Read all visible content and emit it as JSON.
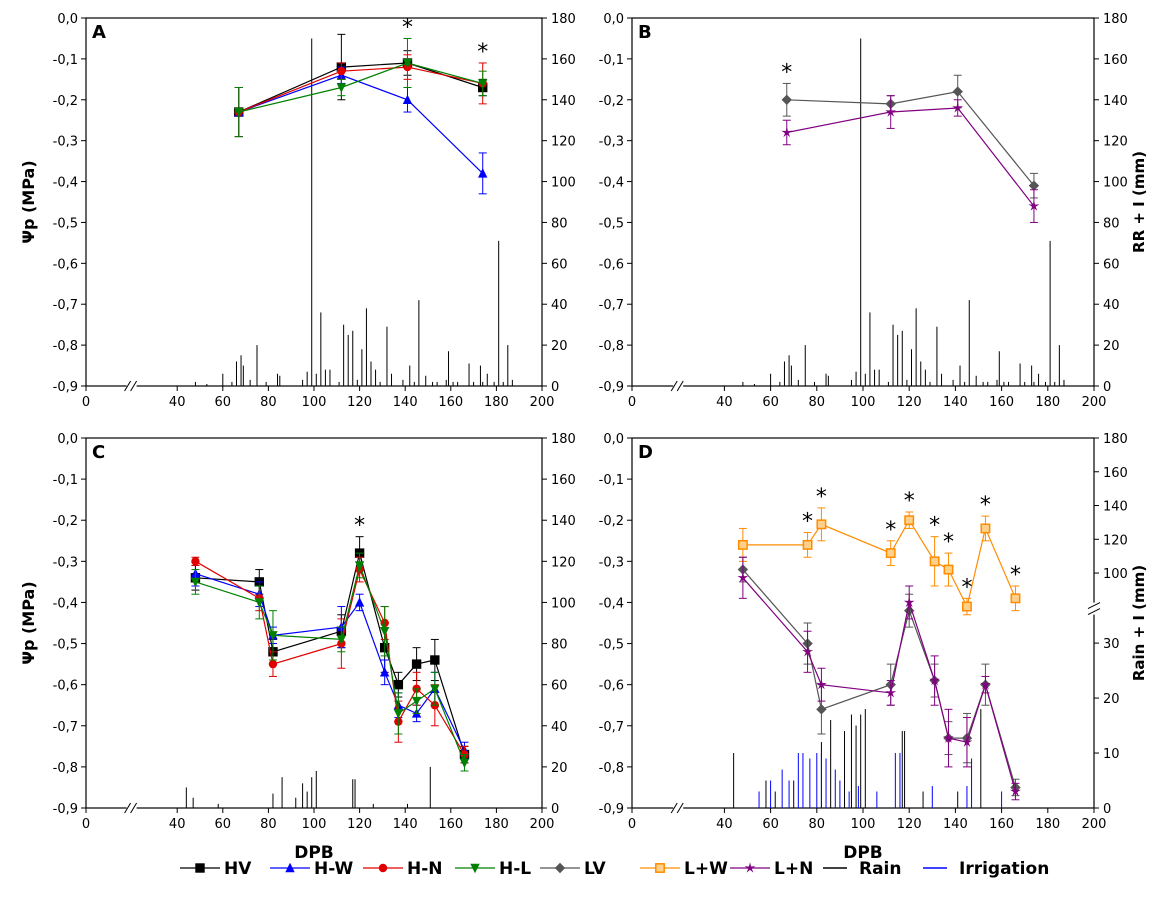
{
  "chart_data": [
    {
      "type": "line",
      "panel_label": "A",
      "ylabel": "Ψp (MPa)",
      "ylim": [
        -0.9,
        0.0
      ],
      "y2lim": [
        0,
        180
      ],
      "xlim": [
        0,
        200
      ],
      "x_axis_break": true,
      "series": [
        {
          "name": "HV",
          "x": [
            67,
            112,
            141,
            174
          ],
          "values": [
            -0.23,
            -0.12,
            -0.11,
            -0.17
          ],
          "err": [
            0.06,
            0.08,
            0.03,
            0.02
          ]
        },
        {
          "name": "H-W",
          "x": [
            67,
            112,
            141,
            174
          ],
          "values": [
            -0.23,
            -0.14,
            -0.2,
            -0.38
          ],
          "err": [
            0.06,
            0.02,
            0.03,
            0.05
          ]
        },
        {
          "name": "H-N",
          "x": [
            67,
            112,
            141,
            174
          ],
          "values": [
            -0.23,
            -0.13,
            -0.12,
            -0.16
          ],
          "err": [
            0.06,
            0.02,
            0.03,
            0.05
          ]
        },
        {
          "name": "H-L",
          "x": [
            67,
            112,
            141,
            174
          ],
          "values": [
            -0.23,
            -0.17,
            -0.11,
            -0.16
          ],
          "err": [
            0.06,
            0.02,
            0.06,
            0.03
          ]
        }
      ],
      "significance_x": [
        141,
        174
      ],
      "rain": {
        "x": [
          48,
          53,
          60,
          64,
          66,
          68,
          69,
          72,
          75,
          79,
          84,
          85,
          95,
          97,
          99,
          101,
          103,
          105,
          107,
          111,
          113,
          115,
          117,
          119,
          121,
          123,
          125,
          127,
          129,
          132,
          134,
          139,
          142,
          144,
          146,
          149,
          152,
          154,
          158,
          159,
          161,
          163,
          168,
          170,
          173,
          174,
          176,
          179,
          181,
          183,
          185,
          187
        ],
        "values": [
          2,
          1,
          6,
          2,
          12,
          15,
          10,
          3,
          20,
          2,
          6,
          5,
          3,
          7,
          170,
          6,
          36,
          8,
          8,
          2,
          30,
          25,
          27,
          3,
          18,
          38,
          12,
          8,
          2,
          29,
          6,
          3,
          10,
          2,
          42,
          5,
          2,
          2,
          3,
          17,
          2,
          2,
          11,
          2,
          10,
          2,
          6,
          2,
          71,
          2,
          20,
          3
        ]
      }
    },
    {
      "type": "line",
      "panel_label": "B",
      "y2label": "RR + I (mm)",
      "ylim": [
        -0.9,
        0.0
      ],
      "y2lim": [
        0,
        180
      ],
      "xlim": [
        0,
        200
      ],
      "x_axis_break": true,
      "series": [
        {
          "name": "LV",
          "x": [
            67,
            112,
            141,
            174
          ],
          "values": [
            -0.2,
            -0.21,
            -0.18,
            -0.41
          ],
          "err": [
            0.04,
            0.02,
            0.04,
            0.03
          ]
        },
        {
          "name": "L+N",
          "x": [
            67,
            112,
            141,
            174
          ],
          "values": [
            -0.28,
            -0.23,
            -0.22,
            -0.46
          ],
          "err": [
            0.03,
            0.04,
            0.02,
            0.04
          ]
        }
      ],
      "significance_x": [
        67
      ],
      "rain": {
        "x": [
          48,
          53,
          60,
          64,
          66,
          68,
          69,
          72,
          75,
          79,
          84,
          85,
          95,
          97,
          99,
          101,
          103,
          105,
          107,
          111,
          113,
          115,
          117,
          119,
          121,
          123,
          125,
          127,
          129,
          132,
          134,
          139,
          142,
          144,
          146,
          149,
          152,
          154,
          158,
          159,
          161,
          163,
          168,
          170,
          173,
          174,
          176,
          179,
          181,
          183,
          185,
          187
        ],
        "values": [
          2,
          1,
          6,
          2,
          12,
          15,
          10,
          3,
          20,
          2,
          6,
          5,
          3,
          7,
          170,
          6,
          36,
          8,
          8,
          2,
          30,
          25,
          27,
          3,
          18,
          38,
          12,
          8,
          2,
          29,
          6,
          3,
          10,
          2,
          42,
          5,
          2,
          2,
          3,
          17,
          2,
          2,
          11,
          2,
          10,
          2,
          6,
          2,
          71,
          2,
          20,
          3
        ]
      }
    },
    {
      "type": "line",
      "panel_label": "C",
      "ylabel": "Ψp (MPa)",
      "xlabel": "DPB",
      "ylim": [
        -0.9,
        0.0
      ],
      "y2lim": [
        0,
        180
      ],
      "xlim": [
        0,
        200
      ],
      "x_axis_break": true,
      "series": [
        {
          "name": "HV",
          "x": [
            48,
            76,
            82,
            112,
            120,
            131,
            137,
            145,
            153,
            166
          ],
          "values": [
            -0.34,
            -0.35,
            -0.52,
            -0.47,
            -0.28,
            -0.51,
            -0.6,
            -0.55,
            -0.54,
            -0.77
          ],
          "err": [
            0.03,
            0.03,
            0.03,
            0.04,
            0.04,
            0.06,
            0.03,
            0.04,
            0.05,
            0.02
          ]
        },
        {
          "name": "H-W",
          "x": [
            48,
            76,
            82,
            112,
            120,
            131,
            137,
            145,
            153,
            166
          ],
          "values": [
            -0.33,
            -0.38,
            -0.48,
            -0.46,
            -0.4,
            -0.57,
            -0.65,
            -0.67,
            -0.61,
            -0.76
          ],
          "err": [
            0.03,
            0.03,
            0.02,
            0.05,
            0.02,
            0.03,
            0.03,
            0.02,
            0.04,
            0.02
          ]
        },
        {
          "name": "H-N",
          "x": [
            48,
            76,
            82,
            112,
            120,
            131,
            137,
            145,
            153,
            166
          ],
          "values": [
            -0.3,
            -0.39,
            -0.55,
            -0.5,
            -0.32,
            -0.45,
            -0.69,
            -0.61,
            -0.65,
            -0.77
          ],
          "err": [
            0.01,
            0.03,
            0.03,
            0.06,
            0.03,
            0.04,
            0.05,
            0.04,
            0.05,
            0.02
          ]
        },
        {
          "name": "H-L",
          "x": [
            48,
            76,
            82,
            112,
            120,
            131,
            137,
            145,
            153,
            166
          ],
          "values": [
            -0.35,
            -0.4,
            -0.48,
            -0.49,
            -0.31,
            -0.47,
            -0.67,
            -0.64,
            -0.61,
            -0.79
          ],
          "err": [
            0.03,
            0.04,
            0.06,
            0.03,
            0.03,
            0.06,
            0.05,
            0.03,
            0.04,
            0.02
          ]
        }
      ],
      "significance_x": [
        120
      ],
      "rain": {
        "x": [
          44,
          47,
          58,
          82,
          86,
          92,
          95,
          97,
          99,
          101,
          117,
          118,
          126,
          141,
          151
        ],
        "values": [
          10,
          5,
          2,
          7,
          15,
          5,
          12,
          8,
          15,
          18,
          14,
          14,
          2,
          2,
          20
        ]
      }
    },
    {
      "type": "line",
      "panel_label": "D",
      "xlabel": "DPB",
      "y2label": "Rain + I (mm)",
      "ylim": [
        -0.9,
        0.0
      ],
      "y2_lower_ticks": [
        0,
        10,
        20,
        30
      ],
      "y2_upper_ticks": [
        100,
        120,
        140,
        160,
        180
      ],
      "xlim": [
        0,
        200
      ],
      "x_axis_break": true,
      "series": [
        {
          "name": "LV",
          "x": [
            48,
            76,
            82,
            112,
            120,
            131,
            137,
            145,
            153,
            166
          ],
          "values": [
            -0.32,
            -0.5,
            -0.66,
            -0.6,
            -0.42,
            -0.59,
            -0.73,
            -0.73,
            -0.6,
            -0.85
          ],
          "err": [
            0.03,
            0.05,
            0.06,
            0.05,
            0.04,
            0.04,
            0.04,
            0.06,
            0.05,
            0.02
          ]
        },
        {
          "name": "L+W",
          "x": [
            48,
            76,
            82,
            112,
            120,
            131,
            137,
            145,
            153,
            166
          ],
          "values": [
            -0.26,
            -0.26,
            -0.21,
            -0.28,
            -0.2,
            -0.3,
            -0.32,
            -0.41,
            -0.22,
            -0.39
          ],
          "err": [
            0.04,
            0.03,
            0.04,
            0.03,
            0.02,
            0.06,
            0.04,
            0.02,
            0.03,
            0.03
          ]
        },
        {
          "name": "L+N",
          "x": [
            48,
            76,
            82,
            112,
            120,
            131,
            137,
            145,
            153,
            166
          ],
          "values": [
            -0.34,
            -0.52,
            -0.6,
            -0.62,
            -0.4,
            -0.59,
            -0.73,
            -0.74,
            -0.6,
            -0.86
          ],
          "err": [
            0.05,
            0.05,
            0.04,
            0.03,
            0.04,
            0.06,
            0.07,
            0.06,
            0.02,
            0.02
          ]
        }
      ],
      "significance_x": [
        76,
        82,
        112,
        120,
        131,
        137,
        145,
        153,
        166
      ],
      "rain": {
        "x": [
          44,
          58,
          62,
          70,
          82,
          86,
          92,
          95,
          97,
          99,
          101,
          117,
          118,
          126,
          141,
          151
        ],
        "values": [
          10,
          5,
          3,
          5,
          12,
          16,
          14,
          17,
          15,
          17,
          18,
          14,
          14,
          3,
          3,
          18
        ]
      },
      "irrigation": {
        "x": [
          55,
          60,
          65,
          68,
          72,
          74,
          77,
          80,
          82,
          84,
          88,
          90,
          94,
          98,
          106,
          114,
          116,
          130,
          145,
          147,
          160
        ],
        "values": [
          3,
          5,
          7,
          5,
          10,
          10,
          9,
          10,
          10,
          9,
          7,
          5,
          3,
          4,
          3,
          10,
          10,
          4,
          4,
          9,
          3
        ]
      }
    }
  ],
  "legend": {
    "items": [
      {
        "label": "HV",
        "color": "#000000",
        "marker": "square"
      },
      {
        "label": "H-W",
        "color": "#0000ff",
        "marker": "triangle-up"
      },
      {
        "label": "H-N",
        "color": "#e00000",
        "marker": "circle"
      },
      {
        "label": "H-L",
        "color": "#008000",
        "marker": "triangle-down"
      },
      {
        "label": "LV",
        "color": "#555555",
        "marker": "diamond"
      },
      {
        "label": "L+W",
        "color": "#ff8c00",
        "marker": "square-open"
      },
      {
        "label": "L+N",
        "color": "#800080",
        "marker": "star"
      },
      {
        "label": "Rain",
        "color": "#000000",
        "marker": "line"
      },
      {
        "label": "Irrigation",
        "color": "#0000ff",
        "marker": "line"
      }
    ]
  }
}
